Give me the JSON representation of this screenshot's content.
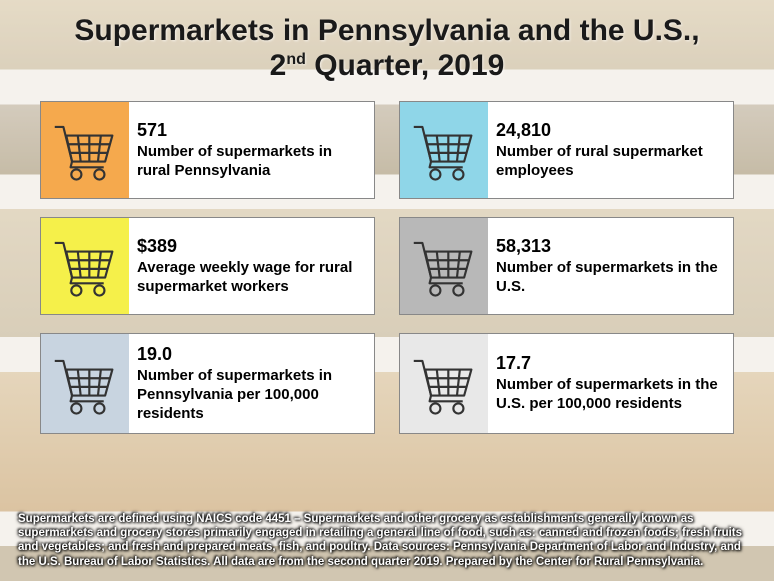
{
  "title": {
    "line1": "Supermarkets in Pennsylvania and the U.S.,",
    "line2_pre": "2",
    "line2_sup": "nd",
    "line2_post": " Quarter, 2019"
  },
  "cards": [
    {
      "id": "rural-count",
      "stat": "571",
      "label": "Number of supermarkets in rural Pennsylvania",
      "icon_bg": "#f5a94d",
      "card_bg": "#ffffff"
    },
    {
      "id": "rural-employees",
      "stat": "24,810",
      "label": "Number of rural supermarket employees",
      "icon_bg": "#8fd6e8",
      "card_bg": "#ffffff"
    },
    {
      "id": "wage",
      "stat": "$389",
      "label": "Average weekly wage for rural supermarket workers",
      "icon_bg": "#f5f04a",
      "card_bg": "#ffffff"
    },
    {
      "id": "us-count",
      "stat": "58,313",
      "label": "Number of supermarkets in the U.S.",
      "icon_bg": "#b8b8b8",
      "card_bg": "#ffffff"
    },
    {
      "id": "pa-per100k",
      "stat": "19.0",
      "label": "Number of supermarkets in Pennsylvania per 100,000 residents",
      "icon_bg": "#c8d4e0",
      "card_bg": "#ffffff"
    },
    {
      "id": "us-per100k",
      "stat": "17.7",
      "label": "Number of supermarkets in the U.S. per 100,000 residents",
      "icon_bg": "#e8e8e8",
      "card_bg": "#ffffff"
    }
  ],
  "footnote": "Supermarkets are defined using NAICS code 4451 – Supermarkets and other grocery as establishments generally known as supermarkets and grocery stores primarily engaged in retailing a general line of food, such as: canned and frozen foods; fresh fruits and vegetables; and fresh and prepared meats, fish, and poultry. Data sources: Pennsylvania Department of Labor and Industry, and the U.S. Bureau of Labor Statistics. All data are from the second quarter 2019. Prepared by the Center for Rural Pennsylvania.",
  "style": {
    "cart_stroke": "#333333",
    "title_color": "#1a1a1a",
    "card_border": "#888888"
  }
}
